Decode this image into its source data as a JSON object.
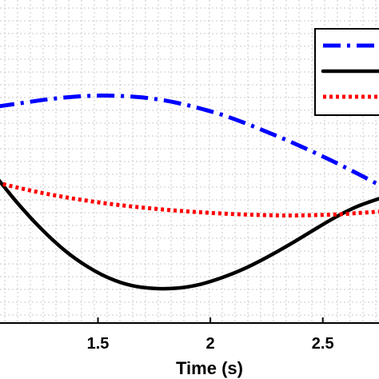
{
  "chart_data": {
    "type": "line",
    "xlabel": "Time (s)",
    "ylabel": "",
    "title": "",
    "xlim": [
      1.05,
      2.75
    ],
    "ylim": [
      0,
      1
    ],
    "x_ticks": [
      1.5,
      2,
      2.5
    ],
    "x_tick_labels": [
      "1.5",
      "2",
      "2.5"
    ],
    "grid": true,
    "legend": {
      "placement": "top-right",
      "entries": 3
    },
    "series": [
      {
        "color": "#0000ff",
        "style": "dash-dot",
        "x": [
          1.05,
          1.15,
          1.25,
          1.35,
          1.45,
          1.55,
          1.65,
          1.75,
          1.85,
          1.95,
          2.05,
          2.15,
          2.25,
          2.35,
          2.45,
          2.55,
          2.65,
          2.75
        ],
        "y": [
          0.67,
          0.68,
          0.69,
          0.698,
          0.703,
          0.704,
          0.701,
          0.694,
          0.682,
          0.665,
          0.645,
          0.62,
          0.592,
          0.563,
          0.532,
          0.499,
          0.464,
          0.428
        ]
      },
      {
        "color": "#000000",
        "style": "solid",
        "x": [
          1.05,
          1.15,
          1.25,
          1.35,
          1.45,
          1.55,
          1.65,
          1.75,
          1.85,
          1.95,
          2.05,
          2.15,
          2.25,
          2.35,
          2.45,
          2.55,
          2.65,
          2.75
        ],
        "y": [
          0.45,
          0.365,
          0.29,
          0.226,
          0.176,
          0.139,
          0.116,
          0.107,
          0.108,
          0.119,
          0.14,
          0.168,
          0.203,
          0.242,
          0.284,
          0.325,
          0.36,
          0.385
        ]
      },
      {
        "color": "#ff0000",
        "style": "dotted",
        "x": [
          1.05,
          1.15,
          1.25,
          1.35,
          1.45,
          1.55,
          1.65,
          1.75,
          1.85,
          1.95,
          2.05,
          2.15,
          2.25,
          2.35,
          2.45,
          2.55,
          2.65,
          2.75
        ],
        "y": [
          0.435,
          0.418,
          0.403,
          0.39,
          0.379,
          0.369,
          0.361,
          0.354,
          0.348,
          0.343,
          0.339,
          0.336,
          0.334,
          0.333,
          0.334,
          0.336,
          0.34,
          0.345
        ]
      }
    ]
  }
}
